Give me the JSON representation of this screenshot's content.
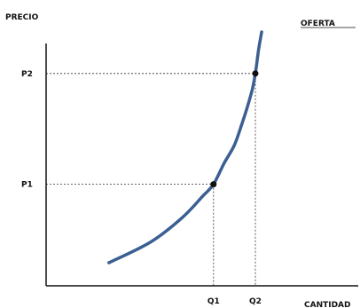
{
  "chart_data": {
    "type": "line",
    "ylabel": "PRECIO",
    "xlabel": "CANTIDAD",
    "series": [
      {
        "name": "OFERTA",
        "color": "#3b5f92",
        "points": [
          {
            "x": 0.3,
            "y": 0.1
          },
          {
            "x": 0.5,
            "y": 0.19
          },
          {
            "x": 0.65,
            "y": 0.295
          },
          {
            "x": 0.75,
            "y": 0.39
          },
          {
            "x": 0.8,
            "y": 0.44
          },
          {
            "x": 0.85,
            "y": 0.53
          },
          {
            "x": 0.9,
            "y": 0.61
          },
          {
            "x": 0.935,
            "y": 0.7
          },
          {
            "x": 0.96,
            "y": 0.77
          },
          {
            "x": 0.985,
            "y": 0.85
          },
          {
            "x": 1.0,
            "y": 0.92
          },
          {
            "x": 1.015,
            "y": 1.02
          },
          {
            "x": 1.03,
            "y": 1.1
          }
        ]
      }
    ],
    "markers": [
      {
        "x": 0.8,
        "y": 0.44,
        "x_label": "Q1",
        "y_label": "P1"
      },
      {
        "x": 1.0,
        "y": 0.92,
        "x_label": "Q2",
        "y_label": "P2"
      }
    ],
    "xlim": [
      0,
      1.3
    ],
    "ylim": [
      0,
      1.2
    ],
    "grid": false,
    "legend": "top-right"
  }
}
